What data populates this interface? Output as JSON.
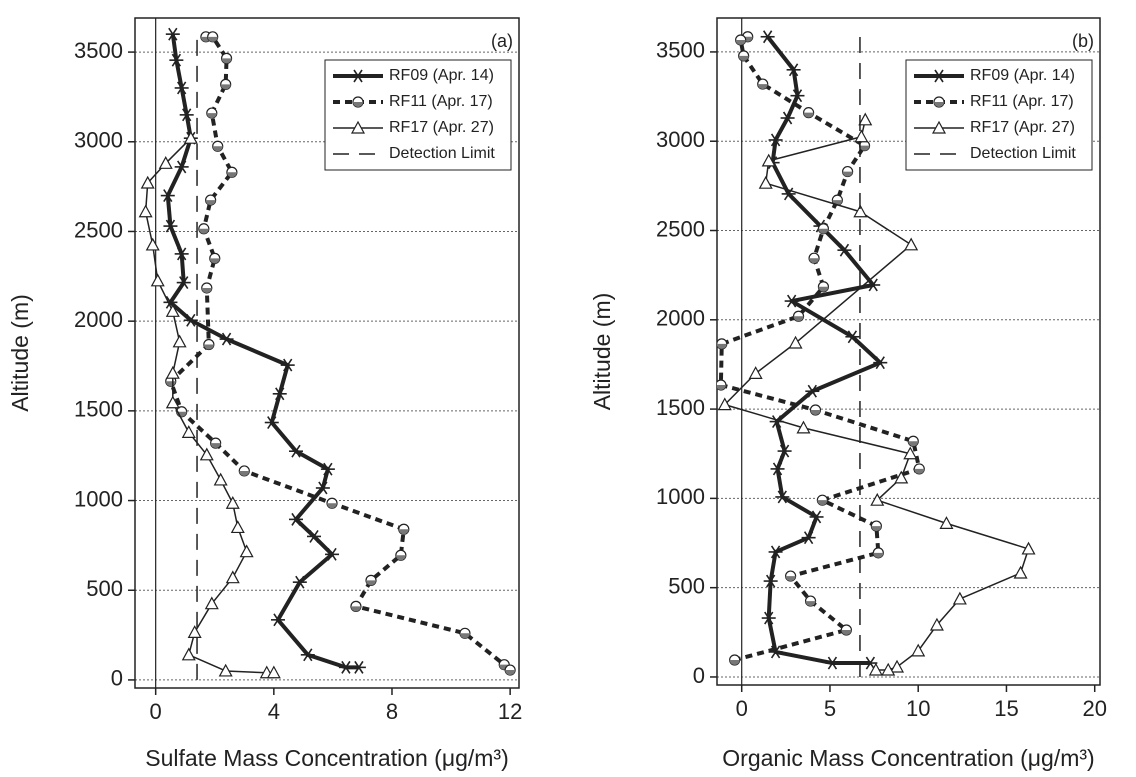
{
  "chart_data": [
    {
      "type": "line",
      "annotation": "(a)",
      "xlabel": "Sulfate Mass Concentration (μg/m³)",
      "ylabel": "Altitude (m)",
      "xlim": [
        -0.7,
        12.3
      ],
      "ylim": [
        -45,
        3690
      ],
      "xticks": [
        0,
        4,
        8,
        12
      ],
      "yticks": [
        0,
        500,
        1000,
        1500,
        2000,
        2500,
        3000,
        3500
      ],
      "grid": true,
      "zero_line": true,
      "legend": "upper right",
      "series": [
        {
          "name": "RF09 (Apr. 14)",
          "color": "#222222",
          "line_style": "solid",
          "line_width": 4,
          "marker": "star",
          "x": [
            0.58,
            0.7,
            0.88,
            1.05,
            1.19,
            0.88,
            0.41,
            0.5,
            0.88,
            0.95,
            0.5,
            1.19,
            2.4,
            4.47,
            4.2,
            3.93,
            4.75,
            5.83,
            5.66,
            4.75,
            5.36,
            5.97,
            4.88,
            4.14,
            5.15,
            6.44,
            6.88
          ],
          "y": [
            3600,
            3455,
            3300,
            3150,
            3020,
            2860,
            2700,
            2530,
            2375,
            2215,
            2105,
            2005,
            1900,
            1755,
            1595,
            1435,
            1275,
            1175,
            1070,
            895,
            800,
            700,
            545,
            335,
            140,
            70,
            70
          ]
        },
        {
          "name": "RF11 (Apr. 17)",
          "color": "#222222",
          "line_style": "dashed",
          "line_width": 4,
          "marker": "circle",
          "x": [
            1.7,
            1.93,
            2.4,
            2.37,
            1.9,
            2.1,
            2.58,
            1.86,
            1.63,
            2.0,
            1.73,
            1.8,
            0.51,
            0.88,
            2.03,
            3.0,
            5.97,
            8.4,
            8.3,
            7.29,
            6.78,
            10.47,
            11.8,
            12.0
          ],
          "y": [
            3585,
            3585,
            3465,
            3320,
            3160,
            2975,
            2830,
            2675,
            2515,
            2350,
            2185,
            1870,
            1665,
            1495,
            1320,
            1165,
            985,
            840,
            695,
            555,
            410,
            260,
            85,
            55
          ]
        },
        {
          "name": "RF17 (Apr. 27)",
          "color": "#222222",
          "line_style": "solid",
          "line_width": 1.5,
          "marker": "triangle",
          "x": [
            1.19,
            0.34,
            -0.27,
            -0.34,
            -0.1,
            0.07,
            0.58,
            0.81,
            0.58,
            0.58,
            1.12,
            1.73,
            2.2,
            2.61,
            2.78,
            3.08,
            2.61,
            1.9,
            1.32,
            1.12,
            2.37,
            3.76,
            4.0
          ],
          "y": [
            3020,
            2880,
            2770,
            2610,
            2425,
            2225,
            2055,
            1885,
            1710,
            1545,
            1380,
            1255,
            1115,
            985,
            850,
            715,
            570,
            425,
            265,
            140,
            50,
            40,
            40
          ]
        },
        {
          "name": "Detection Limit",
          "color": "#222222",
          "line_style": "longdash",
          "line_width": 1.5,
          "marker": "none",
          "x": [
            1.4,
            1.4
          ],
          "y": [
            0,
            3600
          ]
        }
      ]
    },
    {
      "type": "line",
      "annotation": "(b)",
      "xlabel": "Organic Mass Concentration (μg/m³)",
      "ylabel": "Altitude (m)",
      "xlim": [
        -1.4,
        20.3
      ],
      "ylim": [
        -45,
        3690
      ],
      "xticks": [
        0,
        5,
        10,
        15,
        20
      ],
      "yticks": [
        0,
        500,
        1000,
        1500,
        2000,
        2500,
        3000,
        3500
      ],
      "grid": true,
      "zero_line": true,
      "legend": "upper right",
      "series": [
        {
          "name": "RF09 (Apr. 14)",
          "color": "#222222",
          "line_style": "solid",
          "line_width": 4,
          "marker": "star",
          "x": [
            1.47,
            2.94,
            3.16,
            2.6,
            1.92,
            1.75,
            2.66,
            4.46,
            5.82,
            7.45,
            2.83,
            6.27,
            7.85,
            4.0,
            1.98,
            2.43,
            2.03,
            2.3,
            4.24,
            3.79,
            1.92,
            1.64,
            1.53,
            1.92,
            5.14,
            7.29
          ],
          "y": [
            3585,
            3400,
            3255,
            3130,
            3007,
            2880,
            2705,
            2525,
            2390,
            2195,
            2105,
            1905,
            1760,
            1600,
            1430,
            1265,
            1165,
            1008,
            896,
            780,
            700,
            537,
            330,
            140,
            78,
            78
          ]
        },
        {
          "name": "RF11 (Apr. 17)",
          "color": "#222222",
          "line_style": "dashed",
          "line_width": 4,
          "marker": "circle",
          "x": [
            0.34,
            -0.06,
            0.11,
            1.19,
            3.79,
            6.96,
            6.0,
            5.42,
            4.63,
            4.1,
            4.63,
            3.22,
            -1.13,
            -1.18,
            4.18,
            9.72,
            10.06,
            4.57,
            7.63,
            7.74,
            2.77,
            3.9,
            5.93,
            -0.4
          ],
          "y": [
            3585,
            3567,
            3478,
            3320,
            3160,
            2975,
            2830,
            2670,
            2510,
            2345,
            2185,
            2020,
            1865,
            1635,
            1495,
            1320,
            1165,
            990,
            845,
            695,
            565,
            425,
            263,
            95
          ]
        },
        {
          "name": "RF17 (Apr. 27)",
          "color": "#222222",
          "line_style": "solid",
          "line_width": 1.5,
          "marker": "triangle",
          "x": [
            7.0,
            6.78,
            1.53,
            1.36,
            6.72,
            9.6,
            3.05,
            0.79,
            -0.96,
            3.5,
            9.55,
            9.04,
            7.68,
            11.6,
            16.25,
            15.8,
            12.36,
            11.06,
            10.0,
            8.8,
            8.3,
            7.6
          ],
          "y": [
            3120,
            3025,
            2890,
            2765,
            2605,
            2420,
            1870,
            1700,
            1525,
            1395,
            1250,
            1115,
            990,
            860,
            717,
            582,
            437,
            291,
            146,
            56,
            39,
            39
          ]
        },
        {
          "name": "Detection Limit",
          "color": "#222222",
          "line_style": "longdash",
          "line_width": 1.5,
          "marker": "none",
          "x": [
            6.7,
            6.7
          ],
          "y": [
            0,
            3600
          ]
        }
      ]
    }
  ]
}
